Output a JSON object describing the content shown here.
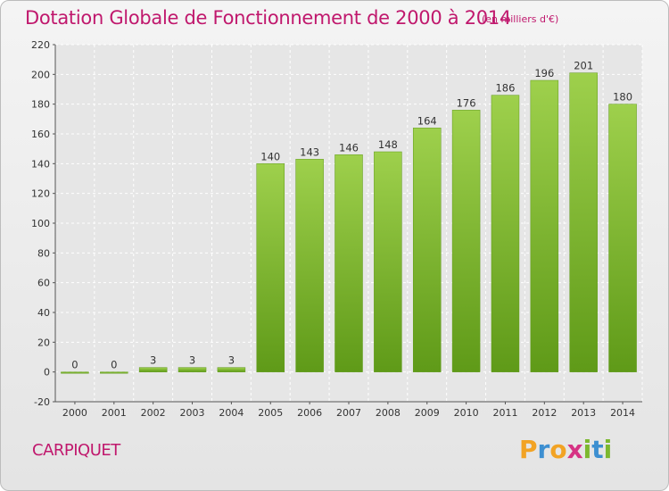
{
  "title": "Dotation Globale de Fonctionnement de 2000 à 2014",
  "unit": "(en milliers d'€)",
  "commune": "CARPIQUET",
  "logo": {
    "text": "Proxiti",
    "letters": [
      {
        "ch": "P",
        "color": "#f2a324"
      },
      {
        "ch": "r",
        "color": "#3d8fd1"
      },
      {
        "ch": "o",
        "color": "#f2a324"
      },
      {
        "ch": "x",
        "color": "#d63384"
      },
      {
        "ch": "i",
        "color": "#7cb82f"
      },
      {
        "ch": "t",
        "color": "#3d8fd1"
      },
      {
        "ch": "i",
        "color": "#7cb82f"
      }
    ]
  },
  "colors": {
    "bar_top": "#9ed04c",
    "bar_bottom": "#5f9a18",
    "accent": "#c0186d"
  },
  "chart_data": {
    "type": "bar",
    "title": "Dotation Globale de Fonctionnement de 2000 à 2014",
    "categories": [
      "2000",
      "2001",
      "2002",
      "2003",
      "2004",
      "2005",
      "2006",
      "2007",
      "2008",
      "2009",
      "2010",
      "2011",
      "2012",
      "2013",
      "2014"
    ],
    "values": [
      0,
      0,
      3,
      3,
      3,
      140,
      143,
      146,
      148,
      164,
      176,
      186,
      196,
      201,
      180
    ],
    "ylim": [
      -20,
      220
    ],
    "yticks": [
      -20,
      0,
      20,
      40,
      60,
      80,
      100,
      120,
      140,
      160,
      180,
      200,
      220
    ],
    "grid": true,
    "xlabel": "",
    "ylabel": ""
  }
}
